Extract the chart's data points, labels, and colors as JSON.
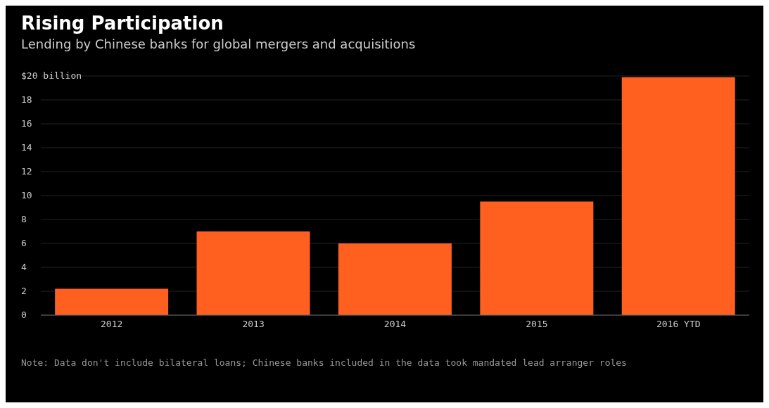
{
  "chart_data": {
    "type": "bar",
    "title": "Rising Participation",
    "subtitle": "Lending by Chinese banks for global mergers and acquisitions",
    "categories": [
      "2012",
      "2013",
      "2014",
      "2015",
      "2016 YTD"
    ],
    "values": [
      2.2,
      7.0,
      6.0,
      9.5,
      19.9
    ],
    "color": "#ff5f1f",
    "ylim": [
      0,
      20
    ],
    "yticks": [
      0,
      2,
      4,
      6,
      8,
      10,
      12,
      14,
      16,
      18,
      {
        "value": 20,
        "label": "$20 billion"
      }
    ],
    "grid": "y",
    "annotations": [
      "Note: Data don't include bilateral loans; Chinese banks included in the data took mandated lead arranger roles"
    ]
  }
}
